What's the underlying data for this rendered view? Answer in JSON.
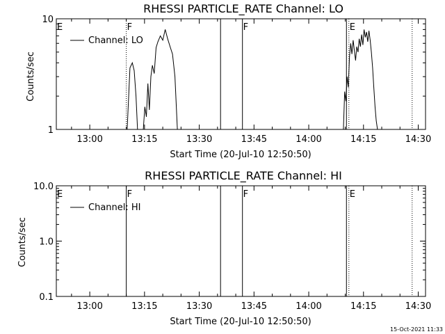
{
  "chart_data": [
    {
      "type": "line",
      "title": "RHESSI PARTICLE_RATE Channel: LO",
      "xlabel": "Start Time (20-Jul-10 12:50:50)",
      "ylabel": "Counts/sec",
      "y_scale": "log",
      "ylim": [
        1,
        10
      ],
      "xlim": [
        "12:50:50",
        "14:32:00"
      ],
      "x_ticks": [
        "13:00",
        "13:15",
        "13:30",
        "13:45",
        "14:00",
        "14:15",
        "14:30"
      ],
      "y_ticks": [
        "1",
        "10"
      ],
      "legend": {
        "placement": "top-left",
        "entries": [
          "Channel: LO"
        ]
      },
      "grid": false,
      "series": [
        {
          "name": "Channel: LO",
          "segments": [
            {
              "x": [
                "13:10:15",
                "13:11:00",
                "13:11:40",
                "13:12:10",
                "13:12:40",
                "13:13:05"
              ],
              "y": [
                1.0,
                3.6,
                4.0,
                3.4,
                2.0,
                1.0
              ]
            },
            {
              "x": [
                "13:14:40",
                "13:15:05",
                "13:15:30",
                "13:15:55",
                "13:16:20",
                "13:16:45",
                "13:17:10",
                "13:17:40",
                "13:18:10",
                "13:18:40",
                "13:19:20",
                "13:20:00",
                "13:20:40",
                "13:21:20",
                "13:22:00",
                "13:22:40",
                "13:23:20",
                "13:24:00"
              ],
              "y": [
                1.0,
                1.6,
                1.3,
                2.6,
                1.5,
                3.0,
                3.8,
                3.2,
                5.5,
                6.2,
                7.0,
                6.4,
                8.0,
                6.6,
                5.6,
                4.8,
                3.0,
                1.0
              ]
            },
            {
              "x": [
                "14:09:30",
                "14:09:50",
                "14:10:10",
                "14:10:30",
                "14:10:50",
                "14:11:10",
                "14:11:30",
                "14:11:50",
                "14:12:10",
                "14:12:30",
                "14:12:50",
                "14:13:10",
                "14:13:30",
                "14:13:50",
                "14:14:10",
                "14:14:30",
                "14:14:50",
                "14:15:10",
                "14:15:30",
                "14:15:50",
                "14:16:10",
                "14:16:30",
                "14:16:50",
                "14:17:10",
                "14:17:30",
                "14:17:50",
                "14:18:10",
                "14:18:30",
                "14:18:50"
              ],
              "y": [
                1.0,
                2.2,
                1.8,
                3.0,
                2.4,
                4.6,
                6.0,
                4.8,
                6.4,
                5.2,
                4.2,
                5.6,
                5.0,
                6.6,
                5.6,
                7.2,
                5.8,
                8.0,
                6.8,
                7.6,
                6.2,
                7.8,
                6.4,
                5.0,
                3.6,
                2.4,
                1.6,
                1.2,
                1.0
              ]
            }
          ]
        }
      ],
      "vertical_markers": [
        {
          "x": "12:50:50",
          "style": "dotted",
          "label": "E"
        },
        {
          "x": "13:10:00",
          "style": "dotted",
          "label": "F"
        },
        {
          "x": "13:35:50",
          "style": "solid",
          "label": ""
        },
        {
          "x": "13:41:50",
          "style": "solid",
          "label": "F"
        },
        {
          "x": "14:10:20",
          "style": "solid",
          "label": ""
        },
        {
          "x": "14:11:00",
          "style": "dotted",
          "label": "E"
        },
        {
          "x": "14:28:20",
          "style": "dotted",
          "label": ""
        }
      ]
    },
    {
      "type": "line",
      "title": "RHESSI PARTICLE_RATE Channel: HI",
      "xlabel": "Start Time (20-Jul-10 12:50:50)",
      "ylabel": "Counts/sec",
      "y_scale": "log",
      "ylim": [
        0.1,
        10
      ],
      "xlim": [
        "12:50:50",
        "14:32:00"
      ],
      "x_ticks": [
        "13:00",
        "13:15",
        "13:30",
        "13:45",
        "14:00",
        "14:15",
        "14:30"
      ],
      "y_ticks": [
        "0.1",
        "1.0",
        "10.0"
      ],
      "legend": {
        "placement": "top-left",
        "entries": [
          "Channel: HI"
        ]
      },
      "grid": false,
      "series": [
        {
          "name": "Channel: HI",
          "segments": []
        }
      ],
      "vertical_markers": [
        {
          "x": "12:50:50",
          "style": "dotted",
          "label": "E"
        },
        {
          "x": "13:10:00",
          "style": "solid",
          "label": "F"
        },
        {
          "x": "13:35:50",
          "style": "solid",
          "label": ""
        },
        {
          "x": "13:41:50",
          "style": "solid",
          "label": "F"
        },
        {
          "x": "14:10:20",
          "style": "solid",
          "label": ""
        },
        {
          "x": "14:11:00",
          "style": "dotted",
          "label": "E"
        },
        {
          "x": "14:28:20",
          "style": "dotted",
          "label": ""
        }
      ]
    }
  ],
  "footer": {
    "timestamp": "15-Oct-2021 11:33"
  }
}
